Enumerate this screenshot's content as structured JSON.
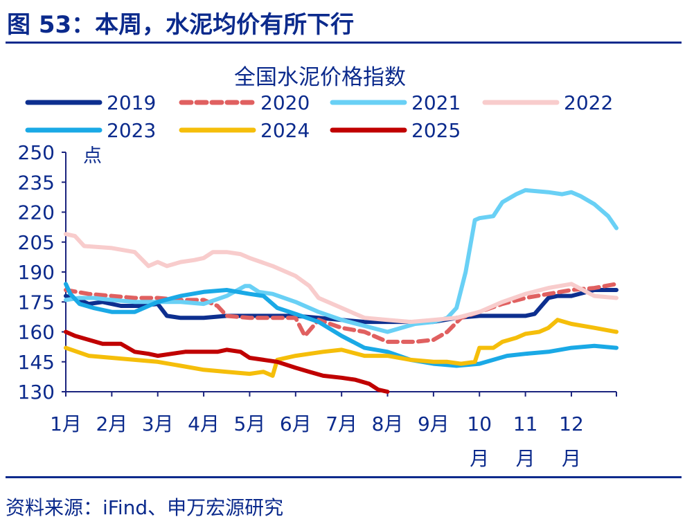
{
  "header": {
    "figure_title": "图 53：本周，水泥均价有所下行"
  },
  "footer": {
    "source": "资料来源：iFind、申万宏源研究"
  },
  "colors": {
    "title": "#0b2a8c",
    "axis_text": "#0b2a8c",
    "axis_line": "#1a237e"
  },
  "chart_data": {
    "type": "line",
    "title": "全国水泥价格指数",
    "ylabel": "点",
    "ylim": [
      130,
      250
    ],
    "yticks": [
      130,
      145,
      160,
      175,
      190,
      205,
      220,
      235,
      250
    ],
    "xlim": [
      1,
      12.98
    ],
    "months": [
      {
        "pos": 1,
        "line1": "1月",
        "line2": ""
      },
      {
        "pos": 2,
        "line1": "2月",
        "line2": ""
      },
      {
        "pos": 3,
        "line1": "3月",
        "line2": ""
      },
      {
        "pos": 4,
        "line1": "4月",
        "line2": ""
      },
      {
        "pos": 5,
        "line1": "5月",
        "line2": ""
      },
      {
        "pos": 6,
        "line1": "6月",
        "line2": ""
      },
      {
        "pos": 7,
        "line1": "7月",
        "line2": ""
      },
      {
        "pos": 8,
        "line1": "8月",
        "line2": ""
      },
      {
        "pos": 9,
        "line1": "9月",
        "line2": ""
      },
      {
        "pos": 10,
        "line1": "10",
        "line2": "月"
      },
      {
        "pos": 11,
        "line1": "11",
        "line2": "月"
      },
      {
        "pos": 12,
        "line1": "12",
        "line2": "月"
      }
    ],
    "legend_position": "top",
    "series": [
      {
        "name": "2019",
        "color": "#0d2f8f",
        "dash": "",
        "x": [
          1.0,
          1.3,
          1.5,
          1.8,
          2.2,
          2.6,
          3.0,
          3.2,
          3.5,
          4.0,
          4.5,
          5.0,
          5.5,
          6.0,
          6.5,
          7.0,
          7.5,
          8.0,
          8.5,
          9.0,
          9.5,
          10.0,
          10.5,
          11.0,
          11.2,
          11.5,
          11.7,
          12.0,
          12.5,
          12.98
        ],
        "y": [
          178,
          176,
          174,
          175,
          173,
          173,
          174,
          168,
          167,
          167,
          168,
          168,
          168,
          168,
          167,
          166,
          165,
          165,
          165,
          165,
          167,
          168,
          168,
          168,
          169,
          177,
          178,
          178,
          181,
          181
        ]
      },
      {
        "name": "2020",
        "color": "#e06060",
        "dash": "14,8",
        "x": [
          1.0,
          1.5,
          2.0,
          2.5,
          3.0,
          3.5,
          4.0,
          4.3,
          4.5,
          5.0,
          5.5,
          6.0,
          6.2,
          6.5,
          7.0,
          7.5,
          8.0,
          8.3,
          8.6,
          9.0,
          9.3,
          9.6,
          10.0,
          10.5,
          11.0,
          11.5,
          12.0,
          12.5,
          12.98
        ],
        "y": [
          181,
          179,
          178,
          177,
          177,
          176,
          176,
          173,
          168,
          167,
          167,
          167,
          158,
          166,
          162,
          160,
          155,
          155,
          155,
          156,
          160,
          167,
          170,
          174,
          177,
          179,
          181,
          182,
          184
        ]
      },
      {
        "name": "2021",
        "color": "#69d0f5",
        "dash": "",
        "x": [
          1.0,
          1.3,
          1.6,
          2.0,
          2.5,
          3.0,
          3.5,
          4.0,
          4.5,
          4.9,
          5.0,
          5.2,
          5.5,
          6.0,
          6.5,
          7.0,
          7.5,
          8.0,
          8.3,
          8.6,
          9.0,
          9.3,
          9.5,
          9.7,
          9.9,
          10.0,
          10.3,
          10.5,
          10.8,
          11.0,
          11.5,
          11.8,
          12.0,
          12.2,
          12.5,
          12.8,
          12.98
        ],
        "y": [
          176,
          177,
          177,
          176,
          175,
          175,
          175,
          174,
          178,
          183,
          183,
          180,
          179,
          175,
          170,
          166,
          163,
          160,
          162,
          164,
          165,
          167,
          172,
          190,
          216,
          217,
          218,
          225,
          229,
          231,
          230,
          229,
          230,
          228,
          224,
          218,
          212
        ]
      },
      {
        "name": "2022",
        "color": "#f8cccc",
        "dash": "",
        "x": [
          1.0,
          1.2,
          1.4,
          2.0,
          2.5,
          2.8,
          3.0,
          3.2,
          3.5,
          3.8,
          4.0,
          4.2,
          4.5,
          4.8,
          5.0,
          5.5,
          6.0,
          6.3,
          6.5,
          7.0,
          7.5,
          8.0,
          8.5,
          9.0,
          9.5,
          10.0,
          10.5,
          11.0,
          11.5,
          12.0,
          12.5,
          12.98
        ],
        "y": [
          209,
          208,
          203,
          202,
          200,
          193,
          195,
          193,
          195,
          196,
          197,
          200,
          200,
          199,
          197,
          193,
          188,
          183,
          177,
          172,
          167,
          166,
          165,
          166,
          167,
          170,
          175,
          179,
          182,
          184,
          178,
          177
        ]
      },
      {
        "name": "2023",
        "color": "#1aa9e6",
        "dash": "",
        "x": [
          1.0,
          1.1,
          1.3,
          1.6,
          2.0,
          2.5,
          3.0,
          3.5,
          4.0,
          4.5,
          5.0,
          5.3,
          5.6,
          6.0,
          6.5,
          7.0,
          7.5,
          8.0,
          8.5,
          9.0,
          9.5,
          10.0,
          10.3,
          10.6,
          11.0,
          11.5,
          12.0,
          12.5,
          12.98
        ],
        "y": [
          184,
          179,
          174,
          172,
          170,
          170,
          175,
          178,
          180,
          181,
          179,
          178,
          172,
          169,
          165,
          158,
          152,
          150,
          146,
          144,
          143,
          144,
          146,
          148,
          149,
          150,
          152,
          153,
          152
        ]
      },
      {
        "name": "2024",
        "color": "#f5be0a",
        "dash": "",
        "x": [
          1.0,
          1.5,
          2.0,
          2.5,
          3.0,
          3.5,
          4.0,
          4.5,
          5.0,
          5.3,
          5.5,
          5.6,
          6.0,
          6.3,
          6.6,
          7.0,
          7.5,
          8.0,
          8.5,
          9.0,
          9.3,
          9.6,
          9.9,
          10.0,
          10.3,
          10.5,
          10.8,
          11.0,
          11.3,
          11.5,
          11.7,
          12.0,
          12.5,
          12.98
        ],
        "y": [
          152,
          148,
          147,
          146,
          145,
          143,
          141,
          140,
          139,
          140,
          138,
          146,
          148,
          149,
          150,
          151,
          148,
          148,
          146,
          145,
          145,
          144,
          145,
          152,
          152,
          155,
          157,
          159,
          160,
          162,
          166,
          164,
          162,
          160
        ]
      },
      {
        "name": "2025",
        "color": "#c00000",
        "dash": "",
        "x": [
          1.0,
          1.2,
          1.5,
          1.8,
          2.2,
          2.5,
          2.8,
          3.0,
          3.3,
          3.6,
          4.0,
          4.3,
          4.5,
          4.8,
          5.0,
          5.3,
          5.6,
          6.0,
          6.3,
          6.6,
          7.0,
          7.3,
          7.6,
          7.8,
          8.0
        ],
        "y": [
          160,
          158,
          156,
          154,
          154,
          150,
          149,
          148,
          149,
          150,
          150,
          150,
          151,
          150,
          147,
          146,
          145,
          142,
          140,
          138,
          137,
          136,
          134,
          131,
          130
        ]
      }
    ]
  }
}
